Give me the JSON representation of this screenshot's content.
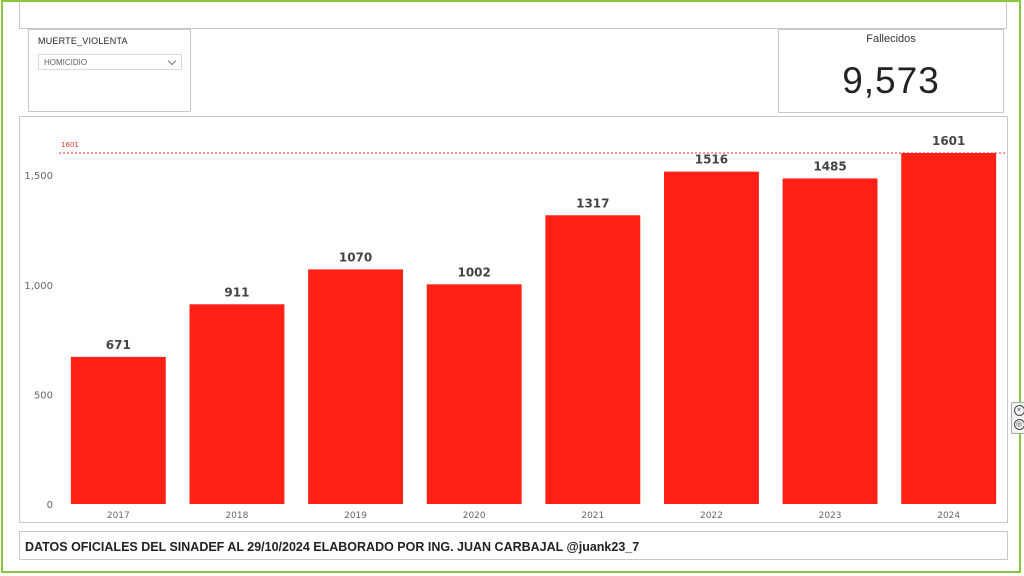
{
  "slicer": {
    "title": "MUERTE_VIOLENTA",
    "selected": "HOMICIDIO"
  },
  "card": {
    "label": "Fallecidos",
    "value": "9,573"
  },
  "footer": {
    "text": "DATOS OFICIALES DEL SINADEF AL 29/10/2024 ELABORADO POR ING. JUAN CARBAJAL @juank23_7"
  },
  "colors": {
    "bar": "#ff2116",
    "reference_line": "#e8332a",
    "border_accent": "#8cc63f"
  },
  "chart_data": {
    "type": "bar",
    "categories": [
      "2017",
      "2018",
      "2019",
      "2020",
      "2021",
      "2022",
      "2023",
      "2024"
    ],
    "values": [
      671,
      911,
      1070,
      1002,
      1317,
      1516,
      1485,
      1601
    ],
    "data_labels": [
      "671",
      "911",
      "1070",
      "1002",
      "1317",
      "1516",
      "1485",
      "1601"
    ],
    "yticks": [
      0,
      500,
      1000,
      1500
    ],
    "ytick_labels": [
      "0",
      "500",
      "1,000",
      "1,500"
    ],
    "ylim": [
      0,
      1601
    ],
    "reference_line": {
      "value": 1601,
      "label": "1601"
    },
    "grid": false,
    "legend": "none"
  }
}
